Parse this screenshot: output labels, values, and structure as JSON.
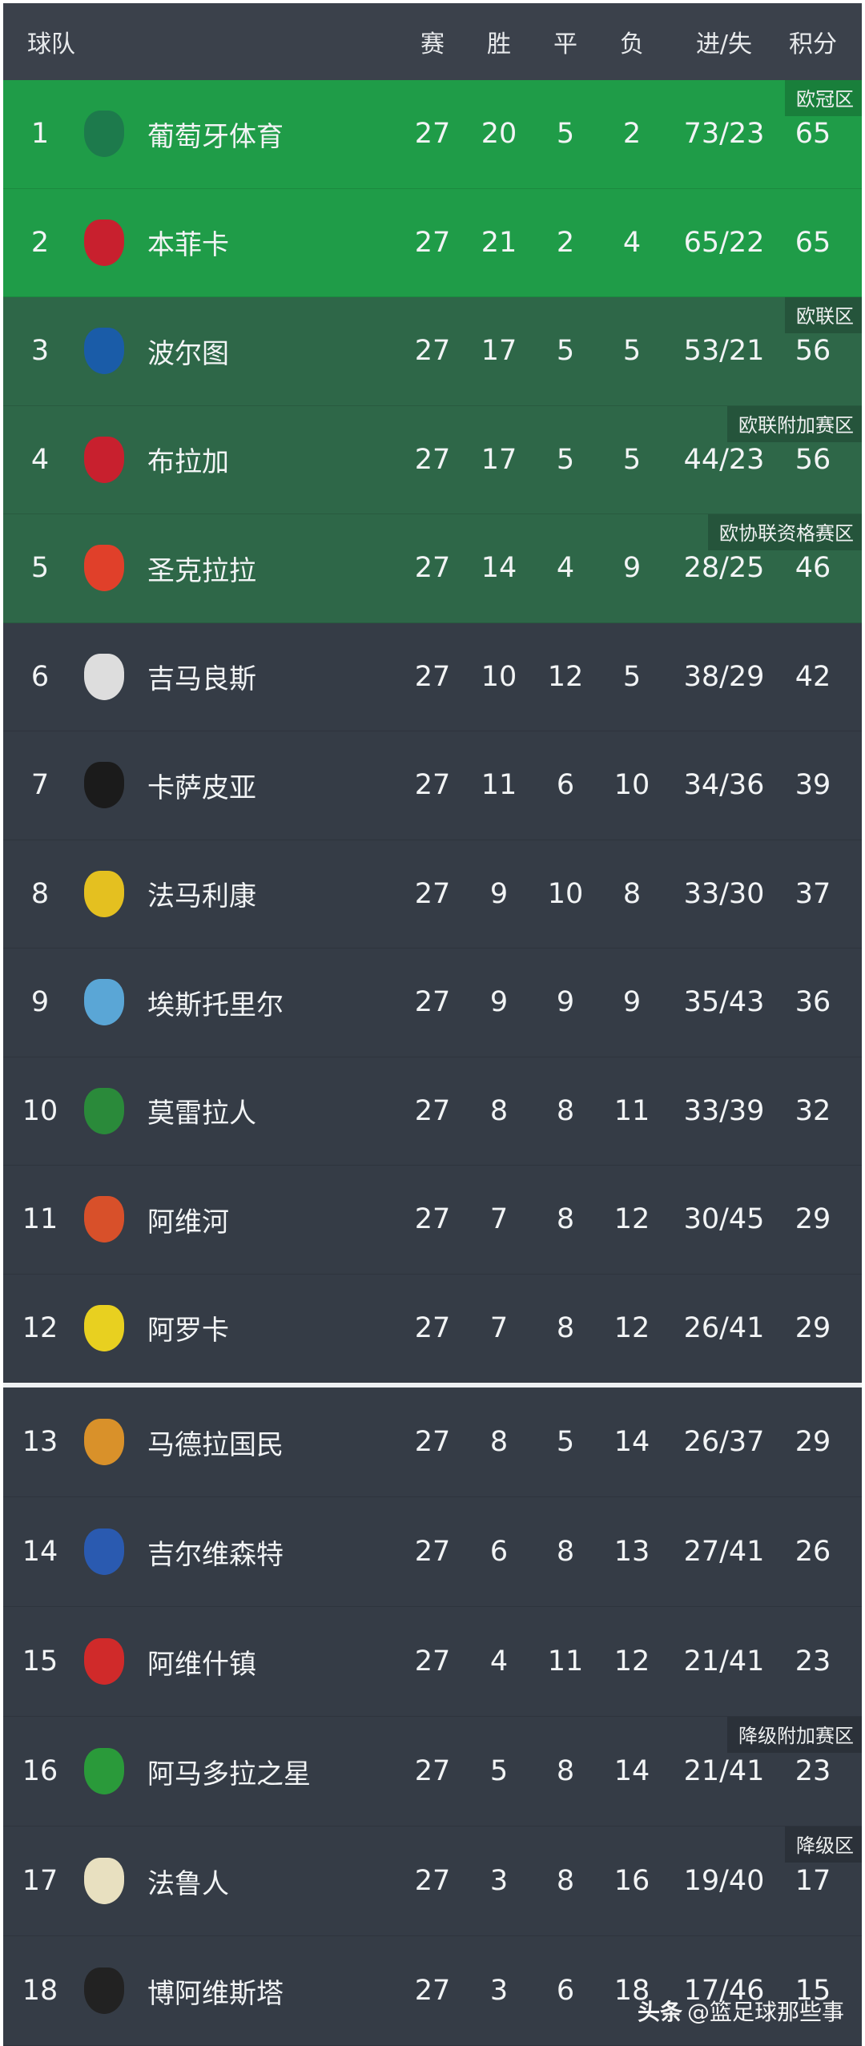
{
  "header": {
    "team": "球队",
    "played": "赛",
    "won": "胜",
    "drawn": "平",
    "lost": "负",
    "goals": "进/失",
    "points": "积分"
  },
  "zone_colors": {
    "ucl": "#1f9c48",
    "europe": "#2e6748",
    "normal": "#353c46",
    "header": "#3b414b"
  },
  "rows_top": [
    {
      "rank": "1",
      "name": "葡萄牙体育",
      "p": "27",
      "w": "20",
      "d": "5",
      "l": "2",
      "g": "73/23",
      "pts": "65",
      "zone": "欧冠区",
      "logo_color": "#1d7a4c",
      "style": "z1"
    },
    {
      "rank": "2",
      "name": "本菲卡",
      "p": "27",
      "w": "21",
      "d": "2",
      "l": "4",
      "g": "65/22",
      "pts": "65",
      "zone": "",
      "logo_color": "#c8202e",
      "style": "z1"
    },
    {
      "rank": "3",
      "name": "波尔图",
      "p": "27",
      "w": "17",
      "d": "5",
      "l": "5",
      "g": "53/21",
      "pts": "56",
      "zone": "欧联区",
      "logo_color": "#1a5ca8",
      "style": "z2"
    },
    {
      "rank": "4",
      "name": "布拉加",
      "p": "27",
      "w": "17",
      "d": "5",
      "l": "5",
      "g": "44/23",
      "pts": "56",
      "zone": "欧联附加赛区",
      "logo_color": "#c8202e",
      "style": "z2"
    },
    {
      "rank": "5",
      "name": "圣克拉拉",
      "p": "27",
      "w": "14",
      "d": "4",
      "l": "9",
      "g": "28/25",
      "pts": "46",
      "zone": "欧协联资格赛区",
      "logo_color": "#e0402a",
      "style": "z2"
    },
    {
      "rank": "6",
      "name": "吉马良斯",
      "p": "27",
      "w": "10",
      "d": "12",
      "l": "5",
      "g": "38/29",
      "pts": "42",
      "zone": "",
      "logo_color": "#dddddd",
      "style": "z0"
    },
    {
      "rank": "7",
      "name": "卡萨皮亚",
      "p": "27",
      "w": "11",
      "d": "6",
      "l": "10",
      "g": "34/36",
      "pts": "39",
      "zone": "",
      "logo_color": "#1b1b1b",
      "style": "z0"
    },
    {
      "rank": "8",
      "name": "法马利康",
      "p": "27",
      "w": "9",
      "d": "10",
      "l": "8",
      "g": "33/30",
      "pts": "37",
      "zone": "",
      "logo_color": "#e4c020",
      "style": "z0"
    },
    {
      "rank": "9",
      "name": "埃斯托里尔",
      "p": "27",
      "w": "9",
      "d": "9",
      "l": "9",
      "g": "35/43",
      "pts": "36",
      "zone": "",
      "logo_color": "#5aa6d6",
      "style": "z0"
    },
    {
      "rank": "10",
      "name": "莫雷拉人",
      "p": "27",
      "w": "8",
      "d": "8",
      "l": "11",
      "g": "33/39",
      "pts": "32",
      "zone": "",
      "logo_color": "#2a8a3a",
      "style": "z0"
    },
    {
      "rank": "11",
      "name": "阿维河",
      "p": "27",
      "w": "7",
      "d": "8",
      "l": "12",
      "g": "30/45",
      "pts": "29",
      "zone": "",
      "logo_color": "#d8502a",
      "style": "z0"
    },
    {
      "rank": "12",
      "name": "阿罗卡",
      "p": "27",
      "w": "7",
      "d": "8",
      "l": "12",
      "g": "26/41",
      "pts": "29",
      "zone": "",
      "logo_color": "#e8d020",
      "style": "z0"
    }
  ],
  "rows_bottom": [
    {
      "rank": "13",
      "name": "马德拉国民",
      "p": "27",
      "w": "8",
      "d": "5",
      "l": "14",
      "g": "26/37",
      "pts": "29",
      "zone": "",
      "logo_color": "#d9912a",
      "style": "z0"
    },
    {
      "rank": "14",
      "name": "吉尔维森特",
      "p": "27",
      "w": "6",
      "d": "8",
      "l": "13",
      "g": "27/41",
      "pts": "26",
      "zone": "",
      "logo_color": "#2a5ab0",
      "style": "z0"
    },
    {
      "rank": "15",
      "name": "阿维什镇",
      "p": "27",
      "w": "4",
      "d": "11",
      "l": "12",
      "g": "21/41",
      "pts": "23",
      "zone": "",
      "logo_color": "#d02a2a",
      "style": "z0"
    },
    {
      "rank": "16",
      "name": "阿马多拉之星",
      "p": "27",
      "w": "5",
      "d": "8",
      "l": "14",
      "g": "21/41",
      "pts": "23",
      "zone": "降级附加赛区",
      "logo_color": "#2a9a3a",
      "style": "z0"
    },
    {
      "rank": "17",
      "name": "法鲁人",
      "p": "27",
      "w": "3",
      "d": "8",
      "l": "16",
      "g": "19/40",
      "pts": "17",
      "zone": "降级区",
      "logo_color": "#e8e0c0",
      "style": "z0"
    },
    {
      "rank": "18",
      "name": "博阿维斯塔",
      "p": "27",
      "w": "3",
      "d": "6",
      "l": "18",
      "g": "17/46",
      "pts": "15",
      "zone": "",
      "logo_color": "#222222",
      "style": "z0"
    }
  ],
  "watermark": {
    "brand": "头条",
    "handle": "@篮足球那些事"
  }
}
